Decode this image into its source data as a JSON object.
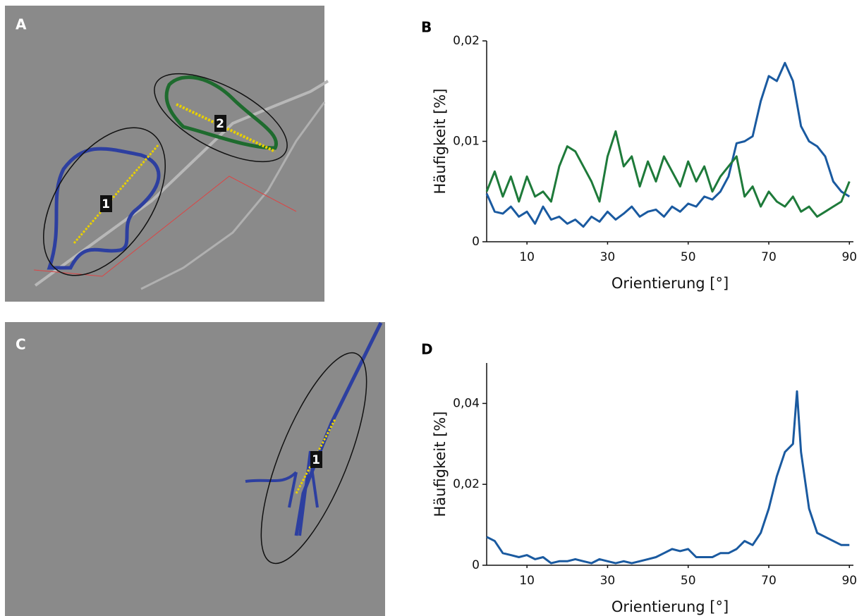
{
  "images": [
    {
      "panel": "A",
      "labels": [
        "1",
        "2"
      ]
    },
    {
      "panel": "C",
      "labels": [
        "1"
      ]
    }
  ],
  "chart_data": [
    {
      "type": "line",
      "panel": "B",
      "y_label": "Häufigkeit [%]",
      "x_label": "Orientierung [°]",
      "x": [
        0,
        2,
        4,
        6,
        8,
        10,
        12,
        14,
        16,
        18,
        20,
        22,
        24,
        26,
        28,
        30,
        32,
        34,
        36,
        38,
        40,
        42,
        44,
        46,
        48,
        50,
        52,
        54,
        56,
        58,
        60,
        62,
        64,
        66,
        68,
        70,
        72,
        74,
        76,
        78,
        80,
        82,
        84,
        86,
        88,
        90
      ],
      "series": [
        {
          "color": "#1a5aa0",
          "values": [
            0.0048,
            0.003,
            0.0028,
            0.0035,
            0.0025,
            0.003,
            0.0018,
            0.0035,
            0.0022,
            0.0025,
            0.0018,
            0.0022,
            0.0015,
            0.0025,
            0.002,
            0.003,
            0.0022,
            0.0028,
            0.0035,
            0.0025,
            0.003,
            0.0032,
            0.0025,
            0.0035,
            0.003,
            0.0038,
            0.0035,
            0.0045,
            0.0042,
            0.005,
            0.0065,
            0.0098,
            0.01,
            0.0105,
            0.014,
            0.0165,
            0.016,
            0.0178,
            0.016,
            0.0115,
            0.01,
            0.0095,
            0.0085,
            0.006,
            0.005,
            0.0045
          ]
        },
        {
          "color": "#1e7a3a",
          "values": [
            0.005,
            0.007,
            0.0045,
            0.0065,
            0.004,
            0.0065,
            0.0045,
            0.005,
            0.004,
            0.0075,
            0.0095,
            0.009,
            0.0075,
            0.006,
            0.004,
            0.0085,
            0.011,
            0.0075,
            0.0085,
            0.0055,
            0.008,
            0.006,
            0.0085,
            0.007,
            0.0055,
            0.008,
            0.006,
            0.0075,
            0.005,
            0.0065,
            0.0075,
            0.0085,
            0.0045,
            0.0055,
            0.0035,
            0.005,
            0.004,
            0.0035,
            0.0045,
            0.003,
            0.0035,
            0.0025,
            0.003,
            0.0035,
            0.004,
            0.006
          ]
        }
      ],
      "xlim": [
        0,
        91
      ],
      "xticks": [
        10,
        30,
        50,
        70,
        90
      ],
      "ylim": [
        0,
        0.02
      ],
      "yticks": [
        0,
        {
          "value": 0.01,
          "label": "0,01"
        },
        {
          "value": 0.02,
          "label": "0,02"
        }
      ],
      "grid": false
    },
    {
      "type": "line",
      "panel": "D",
      "y_label": "Häufigkeit [%]",
      "x_label": "Orientierung [°]",
      "x": [
        0,
        2,
        4,
        6,
        8,
        10,
        12,
        14,
        16,
        18,
        20,
        22,
        24,
        26,
        28,
        30,
        32,
        34,
        36,
        38,
        40,
        42,
        44,
        46,
        48,
        50,
        52,
        54,
        56,
        58,
        60,
        62,
        64,
        66,
        68,
        70,
        72,
        74,
        76,
        77,
        78,
        80,
        82,
        84,
        86,
        88,
        90
      ],
      "series": [
        {
          "color": "#1a5aa0",
          "values": [
            0.007,
            0.006,
            0.003,
            0.0025,
            0.002,
            0.0025,
            0.0015,
            0.002,
            0.0005,
            0.001,
            0.001,
            0.0015,
            0.001,
            0.0005,
            0.0015,
            0.001,
            0.0005,
            0.001,
            0.0005,
            0.001,
            0.0015,
            0.002,
            0.003,
            0.004,
            0.0035,
            0.004,
            0.002,
            0.002,
            0.002,
            0.003,
            0.003,
            0.004,
            0.006,
            0.005,
            0.008,
            0.014,
            0.022,
            0.028,
            0.03,
            0.043,
            0.028,
            0.014,
            0.008,
            0.007,
            0.006,
            0.005,
            0.005
          ]
        }
      ],
      "xlim": [
        0,
        91
      ],
      "xticks": [
        10,
        30,
        50,
        70,
        90
      ],
      "ylim": [
        0,
        0.05
      ],
      "yticks": [
        0,
        {
          "value": 0.02,
          "label": "0,02"
        },
        {
          "value": 0.04,
          "label": "0,04"
        }
      ],
      "grid": false
    }
  ]
}
